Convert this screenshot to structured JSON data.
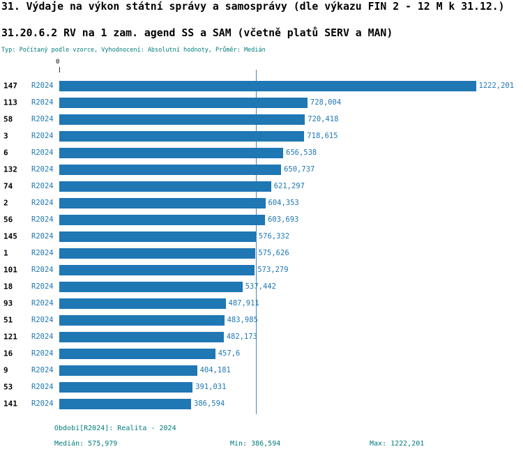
{
  "header": {
    "title": "31. Výdaje na výkon státní správy a samosprávy (dle výkazu FIN 2 - 12 M k 31.12.)",
    "subtitle": "31.20.6.2 RV na 1 zam. agend SS a SAM (včetně platů SERV a MAN)",
    "meta": "Typ: Počítaný podle vzorce, Vyhodnocení: Absolutní hodnoty, Průměr: Medián"
  },
  "chart_data": {
    "type": "bar",
    "orientation": "horizontal",
    "title": "31.20.6.2 RV na 1 zam. agend SS a SAM (včetně platů SERV a MAN)",
    "series_label": "R2024",
    "axis_origin_label": "0",
    "categories": [
      "147",
      "113",
      "58",
      "3",
      "6",
      "132",
      "74",
      "2",
      "56",
      "145",
      "1",
      "101",
      "18",
      "93",
      "51",
      "121",
      "16",
      "9",
      "53",
      "141"
    ],
    "values": [
      1222.201,
      728.004,
      720.418,
      718.615,
      656.538,
      650.737,
      621.297,
      604.353,
      603.693,
      576.332,
      575.626,
      573.279,
      537.442,
      487.911,
      483.985,
      482.173,
      457.6,
      404.181,
      391.031,
      386.594
    ],
    "value_labels": [
      "1222,201",
      "728,004",
      "720,418",
      "718,615",
      "656,538",
      "650,737",
      "621,297",
      "604,353",
      "603,693",
      "576,332",
      "575,626",
      "573,279",
      "537,442",
      "487,911",
      "483,985",
      "482,173",
      "457,6",
      "404,181",
      "391,031",
      "386,594"
    ],
    "median_value": 575.979,
    "xlim": [
      0,
      1350
    ],
    "grid": false,
    "legend_position": "none"
  },
  "footer": {
    "period": "Období[R2024]: Realita - 2024",
    "median": "Medián: 575,979",
    "min": "Min: 386,594",
    "max": "Max: 1222,201"
  },
  "colors": {
    "bar": "#1f77b4",
    "label_blue": "#1f77b4",
    "median_line": "#4a86b8",
    "teal_text": "#007a7a",
    "text": "#000000"
  }
}
